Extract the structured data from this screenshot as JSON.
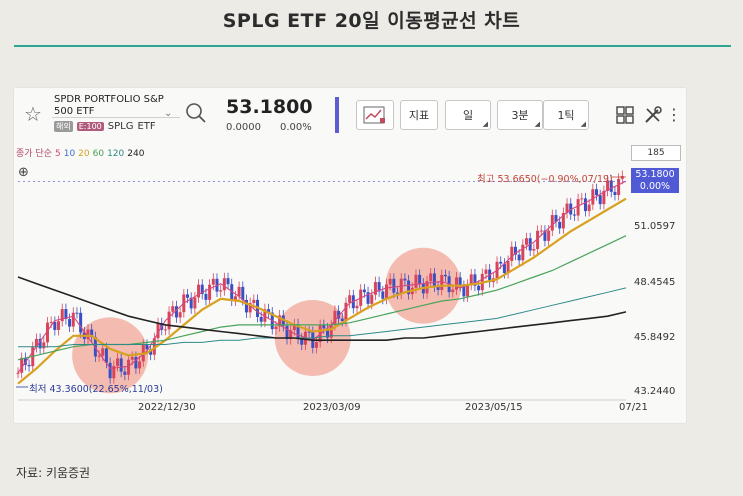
{
  "page": {
    "title": "SPLG ETF 20일 이동평균선 차트",
    "source": "자료: 키움증권"
  },
  "toolbar": {
    "symbol_name": "SPDR PORTFOLIO S&P 500 ETF",
    "tag_a": "해외",
    "tag_b": "E:100",
    "symbol_code": "SPLG",
    "symbol_type": "ETF",
    "price": "53.1800",
    "change_abs": "0.0000",
    "change_pct": "0.00%",
    "btn_indicator": "지표",
    "btn_period": "일",
    "btn_minutes": "3분",
    "btn_tick": "1틱"
  },
  "chart": {
    "ma_legend_prefix": "종가 단순",
    "ma_periods": [
      "5",
      "10",
      "20",
      "60",
      "120",
      "240"
    ],
    "ma_colors": [
      "#d4477e",
      "#3d6fd6",
      "#d8a11f",
      "#4aa35a",
      "#2f8a8a",
      "#222222"
    ],
    "count_box": "185",
    "current_price_line1": "53.1800",
    "current_price_line2": "0.00%",
    "high_annotation": "최고 53.6650(−0.90%,07/19)",
    "low_annotation": "최저 43.3600(22.65%,11/03)",
    "y_labels": [
      "51.0597",
      "48.4545",
      "45.8492",
      "43.2440"
    ],
    "x_labels": [
      "2022/12/30",
      "2023/03/09",
      "2023/05/15",
      "07/21"
    ],
    "accent": "#4f5ad4",
    "up_color": "#d8455a",
    "down_color": "#3a4fc4",
    "highlight_color": "#f08a78"
  },
  "chart_data": {
    "type": "line",
    "y_ticks": [
      51.0597,
      48.4545,
      45.8492,
      43.244
    ],
    "ylim": [
      43.244,
      53.9
    ],
    "x_ticks": [
      "2022/12/30",
      "2023/03/09",
      "2023/05/15",
      "07/21"
    ],
    "high": 53.665,
    "low": 43.36,
    "last": 53.18,
    "series": [
      {
        "name": "5",
        "color": "#d4477e",
        "values": [
          44.4,
          45.6,
          46.8,
          47.0,
          45.8,
          44.6,
          44.7,
          45.4,
          46.8,
          47.6,
          48.1,
          48.5,
          47.9,
          47.2,
          46.7,
          46.2,
          45.9,
          46.6,
          47.6,
          48.0,
          48.3,
          48.4,
          48.5,
          48.6,
          48.3,
          48.6,
          49.1,
          49.9,
          50.4,
          51.2,
          51.9,
          52.3,
          52.8,
          53.2
        ]
      },
      {
        "name": "20",
        "color": "#d8a11f",
        "values": [
          43.9,
          44.6,
          45.4,
          46.1,
          46.1,
          45.5,
          45.2,
          45.3,
          45.9,
          46.6,
          47.3,
          47.8,
          47.7,
          47.4,
          47.0,
          46.6,
          46.3,
          46.4,
          46.9,
          47.4,
          47.8,
          48.1,
          48.3,
          48.4,
          48.4,
          48.5,
          48.7,
          49.2,
          49.7,
          50.3,
          50.9,
          51.4,
          51.9,
          52.4
        ]
      },
      {
        "name": "60",
        "color": "#4aa35a",
        "values": [
          45.0,
          45.2,
          45.4,
          45.6,
          45.7,
          45.7,
          45.7,
          45.8,
          45.9,
          46.1,
          46.3,
          46.5,
          46.6,
          46.6,
          46.6,
          46.6,
          46.6,
          46.6,
          46.7,
          46.9,
          47.1,
          47.3,
          47.5,
          47.7,
          47.8,
          48.0,
          48.2,
          48.5,
          48.8,
          49.1,
          49.5,
          49.9,
          50.3,
          50.7
        ]
      },
      {
        "name": "120",
        "color": "#2f8a8a",
        "values": [
          45.6,
          45.6,
          45.6,
          45.7,
          45.7,
          45.7,
          45.7,
          45.7,
          45.7,
          45.8,
          45.8,
          45.9,
          45.9,
          46.0,
          46.0,
          46.0,
          46.0,
          46.1,
          46.1,
          46.2,
          46.3,
          46.4,
          46.5,
          46.6,
          46.7,
          46.8,
          46.9,
          47.1,
          47.3,
          47.5,
          47.7,
          47.9,
          48.1,
          48.3
        ]
      },
      {
        "name": "240",
        "color": "#222222",
        "values": [
          48.8,
          48.5,
          48.2,
          47.9,
          47.6,
          47.3,
          47.0,
          46.8,
          46.6,
          46.5,
          46.4,
          46.3,
          46.2,
          46.1,
          46.0,
          46.0,
          45.9,
          45.9,
          45.9,
          45.9,
          45.9,
          46.0,
          46.0,
          46.1,
          46.2,
          46.3,
          46.4,
          46.5,
          46.6,
          46.7,
          46.8,
          46.9,
          47.0,
          47.2
        ]
      }
    ],
    "highlights": [
      {
        "x_index": 5,
        "center": 45.2
      },
      {
        "x_index": 16,
        "center": 46.0
      },
      {
        "x_index": 22,
        "center": 48.4
      }
    ]
  }
}
